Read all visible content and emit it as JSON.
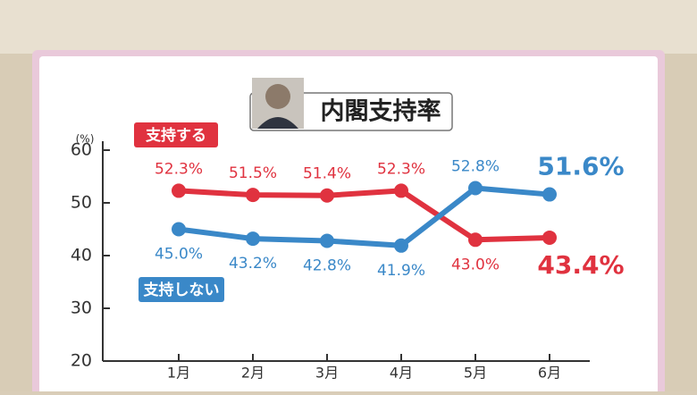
{
  "chart_data": {
    "type": "line",
    "title": "内閣支持率",
    "unit_label": "(%)",
    "categories": [
      "1月",
      "2月",
      "3月",
      "4月",
      "5月",
      "6月"
    ],
    "series": [
      {
        "name": "支持する",
        "color": "#e0323f",
        "values": [
          52.3,
          51.5,
          51.4,
          52.3,
          43.0,
          43.4
        ],
        "value_labels": [
          "52.3%",
          "51.5%",
          "51.4%",
          "52.3%",
          "43.0%",
          "43.4%"
        ]
      },
      {
        "name": "支持しない",
        "color": "#3a88c8",
        "values": [
          45.0,
          43.2,
          42.8,
          41.9,
          52.8,
          51.6
        ],
        "value_labels": [
          "45.0%",
          "43.2%",
          "42.8%",
          "41.9%",
          "52.8%",
          "51.6%"
        ]
      }
    ],
    "ylim": [
      20,
      60
    ],
    "yticks": [
      20,
      30,
      40,
      50,
      60
    ],
    "grid": false
  }
}
